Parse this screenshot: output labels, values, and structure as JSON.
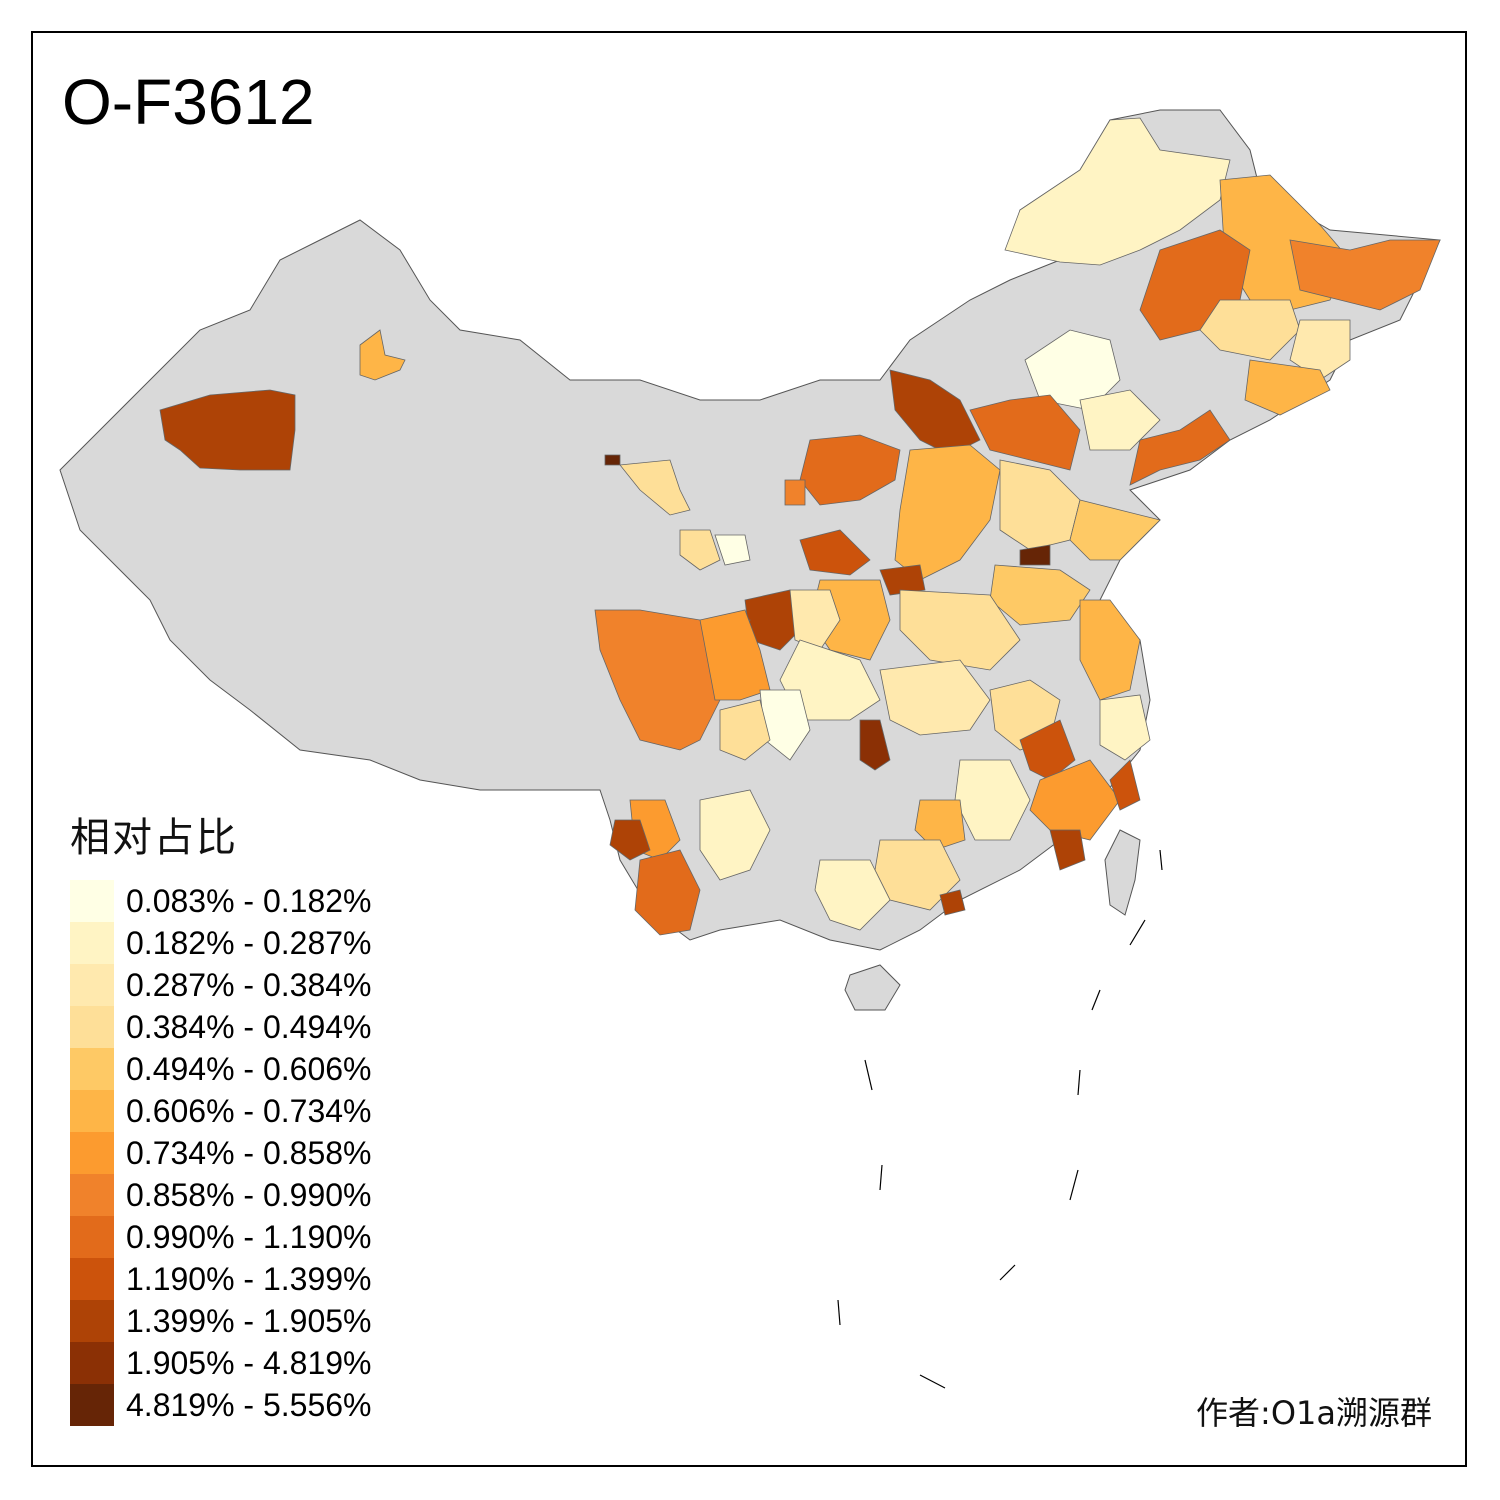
{
  "title": "O-F3612",
  "legend": {
    "title": "相对占比",
    "items": [
      {
        "label": "0.083% - 0.182%",
        "color": "#ffffe5"
      },
      {
        "label": "0.182% - 0.287%",
        "color": "#fff4c4"
      },
      {
        "label": "0.287% - 0.384%",
        "color": "#ffe9ae"
      },
      {
        "label": "0.384% - 0.494%",
        "color": "#fedf98"
      },
      {
        "label": "0.494% - 0.606%",
        "color": "#fec965"
      },
      {
        "label": "0.606% - 0.734%",
        "color": "#feb547"
      },
      {
        "label": "0.734% - 0.858%",
        "color": "#fc9b2f"
      },
      {
        "label": "0.858% - 0.990%",
        "color": "#f0822b"
      },
      {
        "label": "0.990% - 1.190%",
        "color": "#e26b1b"
      },
      {
        "label": "1.190% - 1.399%",
        "color": "#cc530c"
      },
      {
        "label": "1.399% - 1.905%",
        "color": "#ae4306"
      },
      {
        "label": "1.905% - 4.819%",
        "color": "#8b3005"
      },
      {
        "label": "4.819% - 5.556%",
        "color": "#662506"
      }
    ]
  },
  "no_data_color": "#d9d9d9",
  "author": "作者:O1a溯源群"
}
